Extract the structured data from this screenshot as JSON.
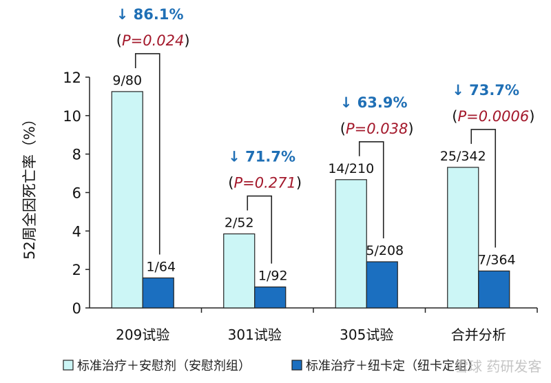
{
  "chart_data": {
    "type": "bar",
    "ylabel": "52周全因死亡率（%）",
    "ylim": [
      0,
      12
    ],
    "yticks": [
      0,
      2,
      4,
      6,
      8,
      10,
      12
    ],
    "grid": false,
    "legend_position": "bottom",
    "categories": [
      "209试验",
      "301试验",
      "305试验",
      "合并分析"
    ],
    "series": [
      {
        "name": "标准治疗＋安慰剂（安慰剂组）",
        "color": "#ccf6f6",
        "values": [
          11.25,
          3.85,
          6.67,
          7.31
        ],
        "labels": [
          "9/80",
          "2/52",
          "14/210",
          "25/342"
        ]
      },
      {
        "name": "标准治疗＋纽卡定（纽卡定组）",
        "color": "#1b6fc0",
        "values": [
          1.56,
          1.09,
          2.4,
          1.92
        ],
        "labels": [
          "1/64",
          "1/92",
          "5/208",
          "7/364"
        ]
      }
    ],
    "annotations": [
      {
        "reduction": "↓ 86.1%",
        "p_value": "P=0.024"
      },
      {
        "reduction": "↓ 71.7%",
        "p_value": "P=0.271"
      },
      {
        "reduction": "↓ 63.9%",
        "p_value": "P=0.038"
      },
      {
        "reduction": "↓ 73.7%",
        "p_value": "P=0.0006"
      }
    ],
    "annotation_colors": {
      "reduction": "#1f6fb5",
      "p_value": "#a3182b"
    }
  },
  "watermark": "雪球 药研发客"
}
